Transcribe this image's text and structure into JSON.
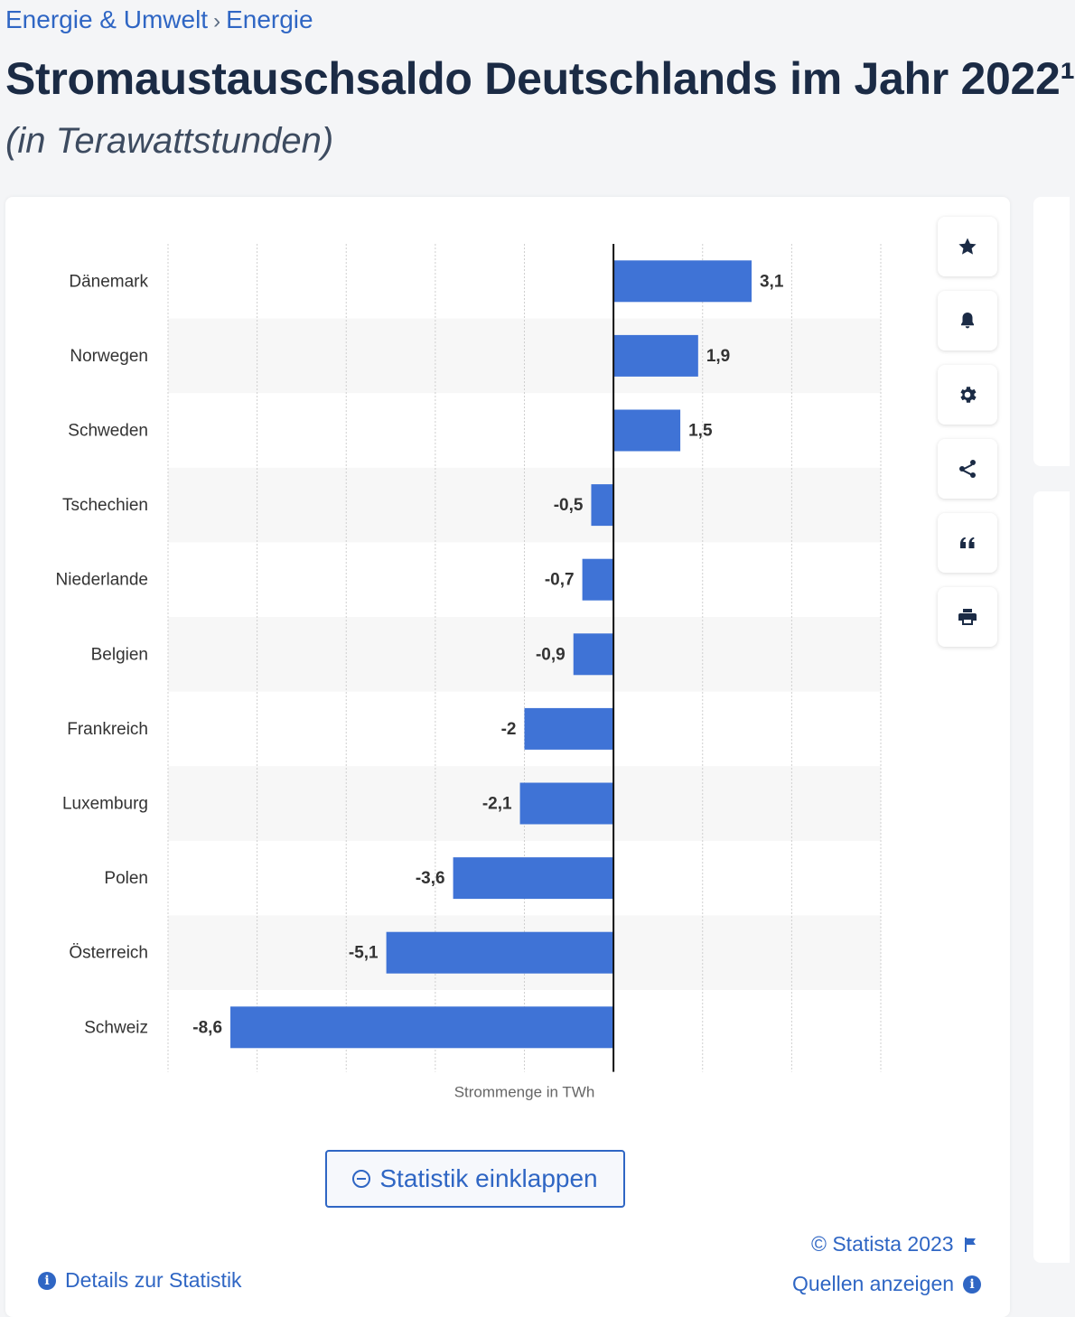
{
  "breadcrumb": {
    "items": [
      "Energie & Umwelt",
      "Energie"
    ],
    "separator": "›"
  },
  "header": {
    "title": "Stromaustauschsaldo Deutschlands im Jahr 2022¹",
    "subtitle": "(in Terawattstunden)"
  },
  "toolbar": {
    "icons": [
      "star-icon",
      "bell-icon",
      "gear-icon",
      "share-icon",
      "quote-icon",
      "print-icon"
    ]
  },
  "chart_data": {
    "type": "bar",
    "orientation": "horizontal",
    "categories": [
      "Dänemark",
      "Norwegen",
      "Schweden",
      "Tschechien",
      "Niederlande",
      "Belgien",
      "Frankreich",
      "Luxemburg",
      "Polen",
      "Österreich",
      "Schweiz"
    ],
    "values": [
      3.1,
      1.9,
      1.5,
      -0.5,
      -0.7,
      -0.9,
      -2,
      -2.1,
      -3.6,
      -5.1,
      -8.6
    ],
    "value_labels": [
      "3,1",
      "1,9",
      "1,5",
      "-0,5",
      "-0,7",
      "-0,9",
      "-2",
      "-2,1",
      "-3,6",
      "-5,1",
      "-8,6"
    ],
    "xlabel": "Strommenge in TWh",
    "ylabel": "",
    "xlim": [
      -10,
      6
    ],
    "grid": true,
    "bar_color": "#3f73d6"
  },
  "actions": {
    "collapse_label": "Statistik einklappen"
  },
  "footer": {
    "copyright": "© Statista 2023",
    "sources": "Quellen anzeigen",
    "details": "Details zur Statistik"
  },
  "colors": {
    "accent": "#2f66c4",
    "title": "#1b2b45"
  }
}
